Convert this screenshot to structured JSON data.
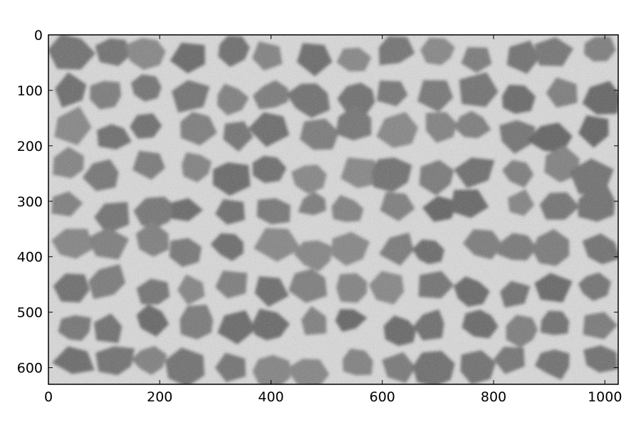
{
  "image": {
    "kind": "grayscale microscopy image",
    "description_colors": {
      "background_light": "#e6e6e6",
      "cell_dark": "#5f5f5f",
      "noise": "#8a8a8a"
    },
    "extent_x": [
      0,
      1024
    ],
    "extent_y": [
      0,
      630
    ]
  },
  "axes": {
    "x_ticks": [
      0,
      200,
      400,
      600,
      800,
      1000
    ],
    "y_ticks": [
      0,
      100,
      200,
      300,
      400,
      500,
      600
    ],
    "x_tick_labels": [
      "0",
      "200",
      "400",
      "600",
      "800",
      "1000"
    ],
    "y_tick_labels": [
      "0",
      "100",
      "200",
      "300",
      "400",
      "500",
      "600"
    ],
    "frame_color": "#000000"
  }
}
